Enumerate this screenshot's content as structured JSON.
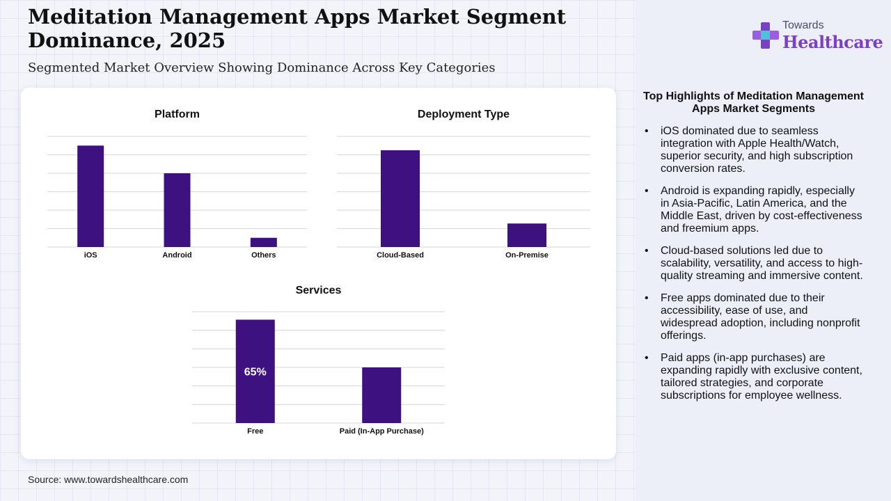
{
  "header": {
    "title": "Meditation Management Apps Market Segment Dominance, 2025",
    "subtitle": "Segmented Market Overview Showing Dominance Across Key Categories"
  },
  "logo": {
    "line1": "Towards",
    "line2": "Healthcare"
  },
  "source": "Source: www.towardshealthcare.com",
  "colors": {
    "bar": "#3d1280",
    "grid": "#d6d6d6",
    "accent": "#7b3fc8"
  },
  "chart_data": [
    {
      "type": "bar",
      "title": "Platform",
      "categories": [
        "iOS",
        "Android",
        "Others"
      ],
      "values": [
        55,
        40,
        5
      ],
      "ylim": [
        0,
        60
      ],
      "grid": true
    },
    {
      "type": "bar",
      "title": "Deployment Type",
      "categories": [
        "Cloud-Based",
        "On-Premise"
      ],
      "values": [
        70,
        17
      ],
      "ylim": [
        0,
        80
      ],
      "grid": true
    },
    {
      "type": "bar",
      "title": "Services",
      "categories": [
        "Free",
        "Paid (In-App Purchase)"
      ],
      "values": [
        65,
        35
      ],
      "ylim": [
        0,
        70
      ],
      "grid": true,
      "data_labels": [
        "65%",
        ""
      ]
    }
  ],
  "highlights": {
    "title": "Top Highlights of Meditation Management Apps Market Segments",
    "items": [
      "iOS dominated due to seamless integration with Apple Health/Watch, superior security, and high subscription conversion rates.",
      "Android is expanding rapidly, especially in Asia-Pacific, Latin America, and the Middle East, driven by cost-effectiveness and freemium apps.",
      "Cloud-based solutions led due to scalability, versatility, and access to high-quality streaming and immersive content.",
      "Free apps dominated due to their accessibility, ease of use, and widespread adoption, including nonprofit offerings.",
      "Paid apps (in-app purchases) are expanding rapidly with exclusive content, tailored strategies, and corporate subscriptions for employee wellness."
    ]
  }
}
